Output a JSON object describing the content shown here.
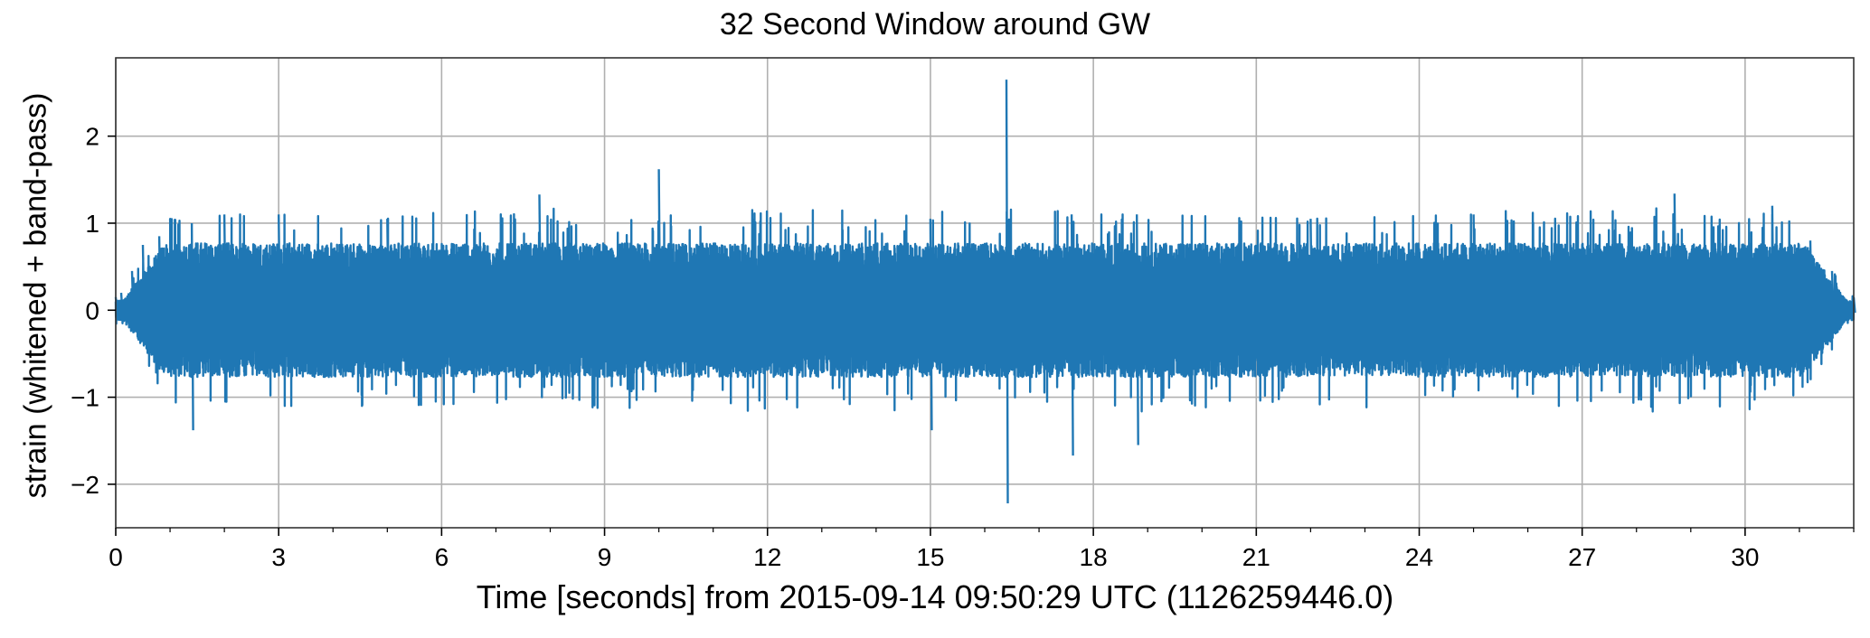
{
  "chart_data": {
    "type": "line",
    "title": "32 Second Window around GW",
    "xlabel": "Time [seconds] from 2015-09-14 09:50:29 UTC (1126259446.0)",
    "ylabel": "strain (whitened + band-pass)",
    "xlim": [
      0,
      32
    ],
    "ylim": [
      -2.5,
      2.9
    ],
    "xticks": [
      0,
      3,
      6,
      9,
      12,
      15,
      18,
      21,
      24,
      27,
      30
    ],
    "xtick_labels": [
      "0",
      "3",
      "6",
      "9",
      "12",
      "15",
      "18",
      "21",
      "24",
      "27",
      "30"
    ],
    "yticks": [
      -2,
      -1,
      0,
      1,
      2
    ],
    "ytick_labels": [
      "−2",
      "−1",
      "0",
      "1",
      "2"
    ],
    "grid": true,
    "line_color": "#1f77b4",
    "series": [
      {
        "values_description": "whitened band-pass strain, dense noise envelope approx ±0.8 tapering to 0 at both ends",
        "x": [
          0.0,
          0.1,
          0.3,
          0.5,
          0.8,
          1.0,
          1.4,
          2.0,
          3.0,
          5.0,
          7.8,
          10.0,
          15.0,
          16.4,
          17.6,
          18.8,
          22.0,
          25.0,
          28.7,
          30.5,
          31.2,
          31.6,
          32.0
        ],
        "y_max": [
          0.15,
          0.2,
          0.45,
          0.75,
          0.85,
          1.05,
          1.0,
          1.1,
          1.1,
          1.05,
          1.33,
          1.62,
          1.05,
          2.65,
          1.1,
          1.1,
          1.05,
          1.1,
          1.34,
          1.2,
          0.8,
          0.45,
          0.15
        ],
        "y_min": [
          -0.15,
          -0.2,
          -0.45,
          -0.75,
          -0.85,
          -1.0,
          -1.38,
          -1.05,
          -1.1,
          -1.1,
          -1.05,
          -1.2,
          -1.38,
          -2.22,
          -1.67,
          -1.55,
          -1.1,
          -1.15,
          -1.25,
          -1.2,
          -0.8,
          -0.45,
          -0.15
        ]
      }
    ]
  }
}
